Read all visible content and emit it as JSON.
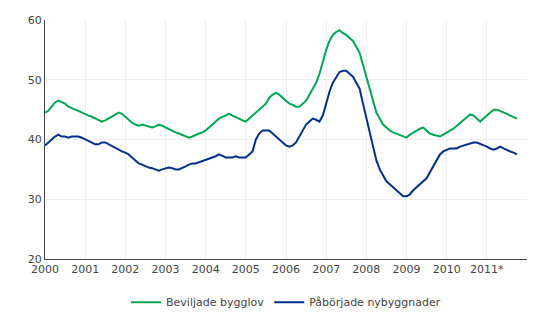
{
  "chart_data": {
    "type": "line",
    "x": [
      2000.0,
      2000.083,
      2000.167,
      2000.25,
      2000.333,
      2000.417,
      2000.5,
      2000.583,
      2000.667,
      2000.75,
      2000.833,
      2000.917,
      2001.0,
      2001.083,
      2001.167,
      2001.25,
      2001.333,
      2001.417,
      2001.5,
      2001.583,
      2001.667,
      2001.75,
      2001.833,
      2001.917,
      2002.0,
      2002.083,
      2002.167,
      2002.25,
      2002.333,
      2002.417,
      2002.5,
      2002.583,
      2002.667,
      2002.75,
      2002.833,
      2002.917,
      2003.0,
      2003.083,
      2003.167,
      2003.25,
      2003.333,
      2003.417,
      2003.5,
      2003.583,
      2003.667,
      2003.75,
      2003.833,
      2003.917,
      2004.0,
      2004.083,
      2004.167,
      2004.25,
      2004.333,
      2004.417,
      2004.5,
      2004.583,
      2004.667,
      2004.75,
      2004.833,
      2004.917,
      2005.0,
      2005.083,
      2005.167,
      2005.25,
      2005.333,
      2005.417,
      2005.5,
      2005.583,
      2005.667,
      2005.75,
      2005.833,
      2005.917,
      2006.0,
      2006.083,
      2006.167,
      2006.25,
      2006.333,
      2006.417,
      2006.5,
      2006.583,
      2006.667,
      2006.75,
      2006.833,
      2006.917,
      2007.0,
      2007.083,
      2007.167,
      2007.25,
      2007.333,
      2007.417,
      2007.5,
      2007.583,
      2007.667,
      2007.75,
      2007.833,
      2007.917,
      2008.0,
      2008.083,
      2008.167,
      2008.25,
      2008.333,
      2008.417,
      2008.5,
      2008.583,
      2008.667,
      2008.75,
      2008.833,
      2008.917,
      2009.0,
      2009.083,
      2009.167,
      2009.25,
      2009.333,
      2009.417,
      2009.5,
      2009.583,
      2009.667,
      2009.75,
      2009.833,
      2009.917,
      2010.0,
      2010.083,
      2010.167,
      2010.25,
      2010.333,
      2010.417,
      2010.5,
      2010.583,
      2010.667,
      2010.75,
      2010.833,
      2010.917,
      2011.0,
      2011.083,
      2011.167,
      2011.25,
      2011.333,
      2011.417,
      2011.5,
      2011.583,
      2011.667,
      2011.75
    ],
    "series": [
      {
        "name": "Beviljade bygglov",
        "color": "#00a651",
        "values": [
          44.5,
          44.8,
          45.5,
          46.2,
          46.5,
          46.3,
          46.0,
          45.5,
          45.2,
          45.0,
          44.8,
          44.5,
          44.3,
          44.0,
          43.8,
          43.5,
          43.2,
          43.0,
          43.2,
          43.5,
          43.8,
          44.2,
          44.5,
          44.3,
          43.8,
          43.2,
          42.8,
          42.5,
          42.3,
          42.5,
          42.3,
          42.2,
          42.0,
          42.2,
          42.5,
          42.3,
          42.0,
          41.8,
          41.5,
          41.2,
          41.0,
          40.8,
          40.5,
          40.3,
          40.5,
          40.8,
          41.0,
          41.2,
          41.5,
          42.0,
          42.5,
          43.0,
          43.5,
          43.8,
          44.0,
          44.3,
          44.0,
          43.8,
          43.5,
          43.2,
          43.0,
          43.5,
          44.0,
          44.5,
          45.0,
          45.5,
          46.0,
          47.0,
          47.5,
          47.8,
          47.5,
          47.0,
          46.5,
          46.0,
          45.8,
          45.5,
          45.5,
          46.0,
          46.5,
          47.5,
          48.5,
          49.5,
          51.0,
          53.0,
          55.0,
          56.5,
          57.5,
          58.0,
          58.3,
          57.8,
          57.5,
          57.0,
          56.5,
          55.5,
          54.5,
          52.5,
          50.5,
          48.5,
          46.5,
          44.5,
          43.5,
          42.5,
          42.0,
          41.5,
          41.2,
          41.0,
          40.8,
          40.5,
          40.3,
          40.8,
          41.2,
          41.5,
          41.8,
          42.0,
          41.5,
          41.0,
          40.8,
          40.7,
          40.5,
          40.8,
          41.2,
          41.5,
          41.8,
          42.3,
          42.8,
          43.3,
          43.8,
          44.2,
          44.0,
          43.5,
          43.0,
          43.5,
          44.0,
          44.5,
          45.0,
          45.0,
          44.8,
          44.5,
          44.3,
          44.0,
          43.8,
          43.5
        ]
      },
      {
        "name": "Påbörjade nybyggnader",
        "color": "#003087",
        "values": [
          39.0,
          39.5,
          40.0,
          40.5,
          40.8,
          40.5,
          40.5,
          40.3,
          40.5,
          40.5,
          40.5,
          40.3,
          40.0,
          39.8,
          39.5,
          39.2,
          39.2,
          39.5,
          39.5,
          39.2,
          38.8,
          38.5,
          38.3,
          38.0,
          37.8,
          37.5,
          37.0,
          36.5,
          36.0,
          35.8,
          35.5,
          35.3,
          35.2,
          35.0,
          34.8,
          35.0,
          35.2,
          35.3,
          35.2,
          35.0,
          35.0,
          35.2,
          35.5,
          35.8,
          36.0,
          36.0,
          36.2,
          36.3,
          36.5,
          36.8,
          37.0,
          37.2,
          37.5,
          37.3,
          37.0,
          37.0,
          37.0,
          37.2,
          37.0,
          37.0,
          37.0,
          37.5,
          38.0,
          40.0,
          41.0,
          41.5,
          41.5,
          41.5,
          41.0,
          40.5,
          40.0,
          39.5,
          39.0,
          38.8,
          39.0,
          39.5,
          40.5,
          41.5,
          42.5,
          43.0,
          43.5,
          43.3,
          43.0,
          44.0,
          46.0,
          48.0,
          49.5,
          50.5,
          51.3,
          51.5,
          51.5,
          51.0,
          50.5,
          49.5,
          48.5,
          46.0,
          43.5,
          41.0,
          38.5,
          36.5,
          35.0,
          34.0,
          33.0,
          32.5,
          32.0,
          31.5,
          31.0,
          30.5,
          30.5,
          30.8,
          31.5,
          32.0,
          32.5,
          33.0,
          33.5,
          34.5,
          35.5,
          36.5,
          37.5,
          38.0,
          38.3,
          38.5,
          38.5,
          38.5,
          38.8,
          39.0,
          39.2,
          39.3,
          39.5,
          39.5,
          39.3,
          39.0,
          38.8,
          38.5,
          38.3,
          38.5,
          38.8,
          38.5,
          38.2,
          38.0,
          37.8,
          37.5
        ]
      }
    ],
    "xlim": [
      2000.0,
      2012.0
    ],
    "xticks": [
      2000,
      2001,
      2002,
      2003,
      2004,
      2005,
      2006,
      2007,
      2008,
      2009,
      2010,
      {
        "value": 2011,
        "label": "2011*"
      }
    ],
    "ylim": [
      20,
      60
    ],
    "yticks": [
      20,
      30,
      40,
      50,
      60
    ],
    "grid": true,
    "legend": "bottom"
  }
}
